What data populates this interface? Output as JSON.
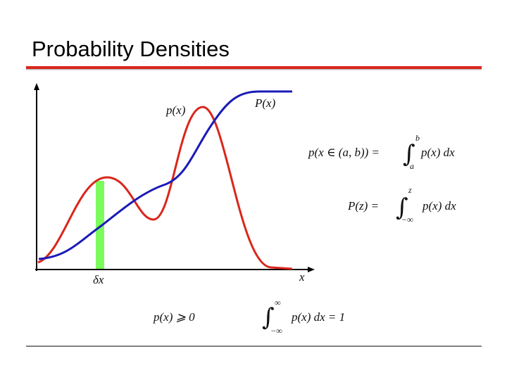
{
  "slide": {
    "title": "Probability Densities",
    "figure": {
      "labels": {
        "px": "p(x)",
        "Px": "P(x)",
        "dx": "δx",
        "x": "x"
      }
    },
    "equations": [
      {
        "lhs": "p(x ∈ (a, b)) =",
        "integral": "∫",
        "upper": "b",
        "lower": "a",
        "integrand": "p(x) dx"
      },
      {
        "lhs": "P(z) =",
        "integral": "∫",
        "upper": "z",
        "lower": "−∞",
        "integrand": "p(x) dx"
      },
      {
        "text": "p(x) ⩾ 0"
      },
      {
        "integral": "∫",
        "upper": "∞",
        "lower": "−∞",
        "integrand": "p(x) dx = 1"
      }
    ]
  }
}
